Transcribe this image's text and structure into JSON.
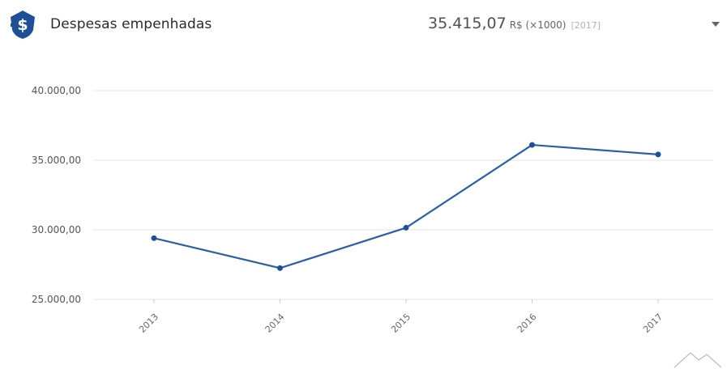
{
  "header": {
    "title": "Despesas empenhadas",
    "value": "35.415,07",
    "unit": "R$ (×1000)",
    "year": "[2017]",
    "icon": "money-shield-icon",
    "dropdown_icon": "caret-down-icon"
  },
  "colors": {
    "accent": "#1f4f96",
    "line": "#2b5ea7",
    "grid": "#e3e3e3"
  },
  "chart_data": {
    "type": "line",
    "x": [
      "2013",
      "2014",
      "2015",
      "2016",
      "2017"
    ],
    "series": [
      {
        "values": [
          29400,
          27250,
          30150,
          36100,
          35415.07
        ]
      }
    ],
    "yticks": [
      "25.000,00",
      "30.000,00",
      "35.000,00",
      "40.000,00"
    ],
    "ytick_values": [
      25000,
      30000,
      35000,
      40000
    ],
    "ylim": [
      25000,
      40000
    ],
    "grid": true,
    "title": "",
    "xlabel": "",
    "ylabel": ""
  }
}
